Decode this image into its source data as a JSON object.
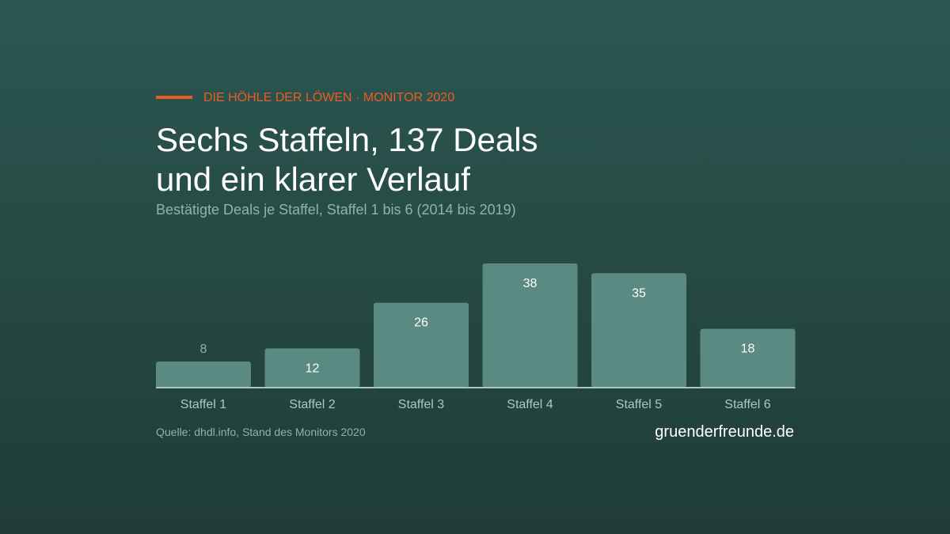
{
  "kicker": "DIE HÖHLE DER LÖWEN · MONITOR 2020",
  "title_line1": "Sechs Staffeln, 137 Deals",
  "title_line2": "und ein klarer Verlauf",
  "subtitle": "Bestätigte Deals je Staffel, Staffel 1 bis 6 (2014 bis 2019)",
  "source": "Quelle: dhdl.info, Stand des Monitors 2020",
  "brand": "gruenderfreunde.de",
  "colors": {
    "accent": "#ee5a24",
    "bar": "#5a8a81",
    "baseline": "#a9c9c1",
    "label_inside": "#ffffff",
    "label_outside": "#8fb3ac",
    "tick": "#a9c9c1"
  },
  "chart_data": {
    "type": "bar",
    "categories": [
      "Staffel 1",
      "Staffel 2",
      "Staffel 3",
      "Staffel 4",
      "Staffel 5",
      "Staffel 6"
    ],
    "values": [
      8,
      12,
      26,
      38,
      35,
      18
    ],
    "data_labels": [
      "8",
      "12",
      "26",
      "38",
      "35",
      "18"
    ],
    "ylim": [
      0,
      38
    ],
    "grid": false,
    "legend": "none"
  }
}
